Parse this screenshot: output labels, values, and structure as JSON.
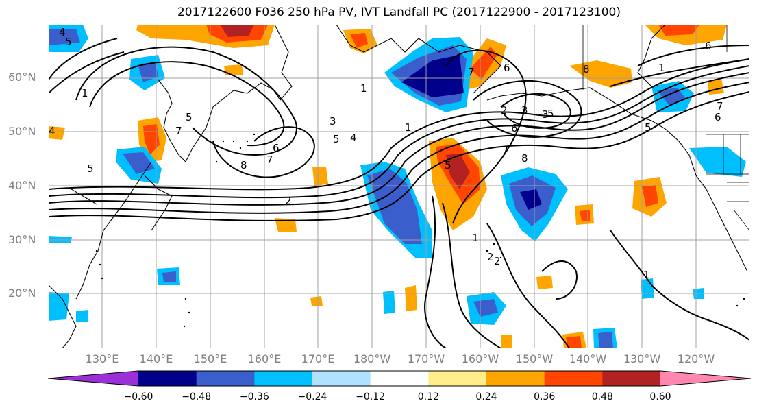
{
  "title": "2017122600 F036 250 hPa PV, IVT Landfall PC (2017122900 - 2017123100)",
  "lat_labels": [
    "60°N",
    "50°N",
    "40°N",
    "30°N",
    "20°N"
  ],
  "lon_labels": [
    "130°E",
    "140°E",
    "150°E",
    "160°E",
    "170°E",
    "180°W",
    "170°W",
    "160°W",
    "150°W",
    "140°W",
    "130°W",
    "120°W"
  ],
  "colorbar": {
    "colors": [
      "#9b30d9",
      "#00008b",
      "#3a5fcd",
      "#00bfff",
      "#b0e2ff",
      "#ffffff",
      "#ffec8b",
      "#ffa500",
      "#ff4500",
      "#b22222",
      "#ff88b0"
    ],
    "tick_labels": [
      "−0.60",
      "−0.48",
      "−0.36",
      "−0.24",
      "−0.12",
      "0.12",
      "0.24",
      "0.36",
      "0.48",
      "0.60"
    ]
  },
  "contour_labels": [
    "4",
    "5",
    "6",
    "8",
    "7",
    "5",
    "4",
    "3",
    "2",
    "1",
    "5",
    "8",
    "7",
    "6",
    "1",
    "2",
    "3",
    "6",
    "7",
    "5",
    "2",
    "1",
    "6",
    "7",
    "5",
    "8",
    "6",
    "1",
    "7",
    "5",
    "1",
    "3",
    "1",
    "2",
    "5",
    "4"
  ]
}
